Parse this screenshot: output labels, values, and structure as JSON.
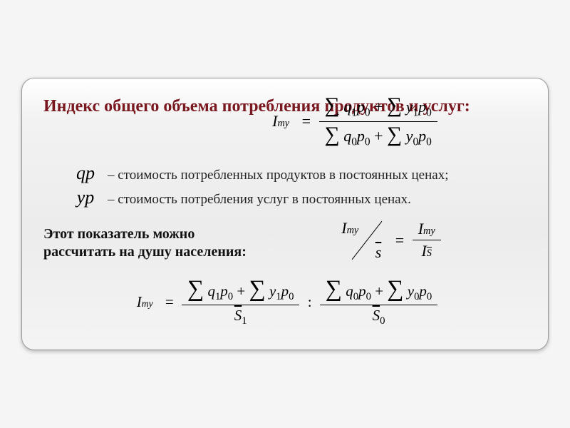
{
  "title": "Индекс общего объема потребления продуктов и услуг:",
  "colors": {
    "title": "#7a1820",
    "text": "#111111",
    "border": "#999999"
  },
  "formula_main": {
    "lhs_symbol": "I",
    "lhs_sub": "my",
    "num": "∑ q₁p₀ + ∑ y₁p₀",
    "den": "∑ q₀p₀ + ∑ y₀p₀"
  },
  "legend": [
    {
      "sym": "qp",
      "text": " – стоимость потребленных продуктов в постоянных ценах;"
    },
    {
      "sym": "yp",
      "text": " – стоимость потребления услуг в постоянных ценах."
    }
  ],
  "caption": "Этот показатель можно рассчитать на душу населения:",
  "per_capita": {
    "diag_top": "Iₘᵧ",
    "diag_bot": "s̄",
    "eq": "=",
    "rhs_num": "Iₘᵧ",
    "rhs_den": "I s̄"
  },
  "final": {
    "lhs": "Iₘᵧ",
    "t1_num": "∑ q₁p₀ + ∑ y₁p₀",
    "t1_den": "S̄₁",
    "colon": ":",
    "t2_num": "∑ q₀p₀ + ∑ y₀p₀",
    "t2_den": "S̄₀"
  }
}
